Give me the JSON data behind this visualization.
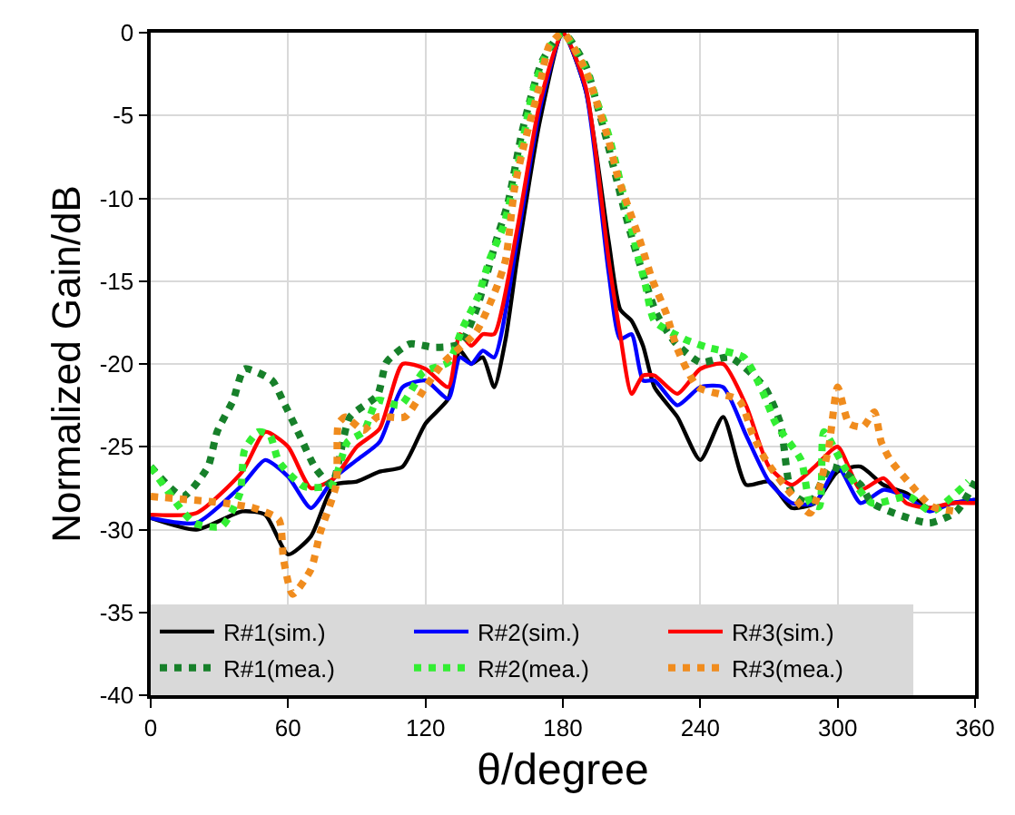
{
  "chart_data": {
    "type": "line",
    "xlabel": "θ/degree",
    "ylabel": "Normalized Gain/dB",
    "xlim": [
      0,
      360
    ],
    "ylim": [
      -40,
      0
    ],
    "xticks": [
      0,
      60,
      120,
      180,
      240,
      300,
      360
    ],
    "yticks": [
      -40,
      -35,
      -30,
      -25,
      -20,
      -15,
      -10,
      -5,
      0
    ],
    "grid": true,
    "legend": "bottom",
    "marker": "none",
    "series": [
      {
        "name": "R#1(sim.)",
        "color": "#000000",
        "line_style": "solid",
        "x": [
          0,
          20,
          40,
          50,
          60,
          70,
          80,
          90,
          100,
          110,
          120,
          130,
          135,
          140,
          145,
          150,
          155,
          160,
          170,
          180,
          190,
          200,
          205,
          210,
          215,
          220,
          230,
          240,
          250,
          260,
          270,
          280,
          290,
          300,
          310,
          320,
          330,
          340,
          350,
          360
        ],
        "values": [
          -29.3,
          -30,
          -28.9,
          -29.1,
          -31.5,
          -30.4,
          -27.3,
          -27.1,
          -26.5,
          -26.2,
          -23.6,
          -22.1,
          -19.2,
          -20,
          -19.6,
          -21.4,
          -18.5,
          -13.7,
          -5.3,
          0,
          -3.5,
          -12.6,
          -16.7,
          -17.4,
          -18.9,
          -21.4,
          -23.2,
          -25.8,
          -23.2,
          -27.3,
          -27.1,
          -28.7,
          -28.4,
          -26.5,
          -26.2,
          -27.3,
          -27.8,
          -28.7,
          -28.4,
          -28.2
        ]
      },
      {
        "name": "R#2(sim.)",
        "color": "#0000ff",
        "line_style": "solid",
        "x": [
          0,
          20,
          40,
          50,
          60,
          70,
          80,
          90,
          100,
          110,
          120,
          130,
          135,
          140,
          145,
          150,
          160,
          170,
          180,
          190,
          200,
          205,
          210,
          215,
          220,
          230,
          240,
          250,
          260,
          270,
          280,
          290,
          300,
          310,
          320,
          330,
          340,
          350,
          360
        ],
        "values": [
          -29.3,
          -29.6,
          -27.3,
          -25.8,
          -26.8,
          -28.7,
          -26.9,
          -25.8,
          -24.7,
          -21.4,
          -21,
          -22.1,
          -19.6,
          -20,
          -19.2,
          -19.6,
          -12.6,
          -4.6,
          0,
          -3.5,
          -14.5,
          -18.5,
          -18.2,
          -21,
          -21,
          -22.5,
          -21.4,
          -21.4,
          -24.3,
          -27.1,
          -28.4,
          -28.4,
          -26.2,
          -28.4,
          -27.6,
          -28,
          -28.9,
          -28.4,
          -28.2
        ]
      },
      {
        "name": "R#3(sim.)",
        "color": "#ff0000",
        "line_style": "solid",
        "x": [
          0,
          20,
          40,
          50,
          60,
          70,
          80,
          90,
          100,
          110,
          120,
          130,
          135,
          140,
          145,
          150,
          160,
          170,
          180,
          190,
          200,
          205,
          210,
          215,
          220,
          230,
          240,
          250,
          260,
          270,
          280,
          290,
          300,
          310,
          320,
          330,
          340,
          350,
          360
        ],
        "values": [
          -29.1,
          -29,
          -26.5,
          -24.1,
          -25,
          -27.5,
          -26.9,
          -25,
          -23.9,
          -20,
          -20.3,
          -21.4,
          -18.2,
          -18.9,
          -18.2,
          -18.2,
          -11.9,
          -4.2,
          0,
          -3.3,
          -13.7,
          -18.2,
          -21.8,
          -20.7,
          -20.7,
          -21.8,
          -20.3,
          -20,
          -22.5,
          -26.2,
          -27.3,
          -26.2,
          -25,
          -27.6,
          -26.9,
          -28.4,
          -28.7,
          -28.4,
          -28.4
        ]
      },
      {
        "name": "R#1(mea.)",
        "color": "#17802a",
        "line_style": "dotted",
        "x": [
          0,
          14,
          25,
          29,
          36,
          41,
          53,
          58,
          65,
          72,
          79,
          87,
          99,
          103,
          113,
          124,
          135,
          142,
          147,
          151,
          156,
          162,
          166,
          171,
          180,
          190,
          195,
          199,
          203,
          207,
          211,
          216,
          221,
          229,
          240,
          253,
          268,
          275,
          280,
          288,
          297,
          310,
          315,
          340,
          352,
          360
        ],
        "values": [
          -26.2,
          -28,
          -26.2,
          -24.1,
          -22.2,
          -20.3,
          -21,
          -22.3,
          -24.3,
          -26.3,
          -27.3,
          -23.2,
          -21.9,
          -19.9,
          -18.8,
          -19,
          -18.8,
          -16.8,
          -14.5,
          -12.5,
          -10.3,
          -6.1,
          -3.9,
          -1.7,
          0,
          -2,
          -4.4,
          -6.4,
          -8.6,
          -10.8,
          -12.8,
          -15,
          -17,
          -18.7,
          -19.9,
          -19.6,
          -21.4,
          -23.6,
          -27.8,
          -28.4,
          -26.2,
          -27.3,
          -28.4,
          -29.6,
          -28.9,
          -27.1
        ]
      },
      {
        "name": "R#2(mea.)",
        "color": "#33ee33",
        "line_style": "dotted",
        "x": [
          0,
          19,
          31,
          39,
          41,
          47,
          52,
          56,
          67,
          79,
          86,
          93,
          99,
          109,
          119,
          130,
          136,
          143,
          148,
          154,
          158,
          162,
          167,
          174,
          180,
          190,
          195,
          200,
          212,
          216,
          220,
          233,
          243,
          259,
          267,
          273,
          284,
          288,
          292,
          294,
          304,
          315,
          331,
          341,
          357
        ],
        "values": [
          -26.2,
          -29.6,
          -29.8,
          -27.8,
          -25.2,
          -24.1,
          -24.3,
          -25.9,
          -27.4,
          -27.3,
          -24.7,
          -24.1,
          -22.2,
          -22.5,
          -20.5,
          -19.9,
          -17.9,
          -15.9,
          -13.7,
          -11.7,
          -9.5,
          -6.9,
          -3.5,
          -0.9,
          0,
          -2.2,
          -4.2,
          -6.2,
          -13,
          -15.2,
          -17.4,
          -18.5,
          -19,
          -19.6,
          -21.6,
          -23.6,
          -25.8,
          -28.4,
          -28.6,
          -24.1,
          -26.5,
          -28.4,
          -28,
          -28.9,
          -27.1
        ]
      },
      {
        "name": "R#3(mea.)",
        "color": "#f08c1e",
        "line_style": "dotted",
        "x": [
          0,
          32,
          45,
          56,
          58,
          62,
          70,
          74,
          81,
          82,
          85,
          93,
          99,
          111,
          120,
          128,
          142,
          151,
          155,
          159,
          163,
          170,
          174,
          180,
          190,
          195,
          200,
          204,
          209,
          214,
          219,
          225,
          230,
          239,
          257,
          263,
          269,
          280,
          288,
          296,
          300,
          305,
          311,
          316,
          319,
          323,
          332,
          341,
          352
        ],
        "values": [
          -28,
          -28.4,
          -28.7,
          -29.4,
          -31.8,
          -33.9,
          -32.4,
          -30.2,
          -27.3,
          -23.6,
          -23.2,
          -24,
          -23.2,
          -23.2,
          -21.4,
          -19.9,
          -18.1,
          -15.4,
          -13.7,
          -9.3,
          -6.8,
          -3.1,
          -0.8,
          0,
          -2.3,
          -4.3,
          -6.5,
          -8.7,
          -10.7,
          -12.7,
          -14.9,
          -16.9,
          -19.1,
          -21.4,
          -22.2,
          -24.3,
          -25.9,
          -27.9,
          -29,
          -25.1,
          -21.4,
          -23.6,
          -23.8,
          -22.9,
          -24.7,
          -25.8,
          -27.3,
          -28.6,
          -28.9
        ]
      }
    ]
  }
}
